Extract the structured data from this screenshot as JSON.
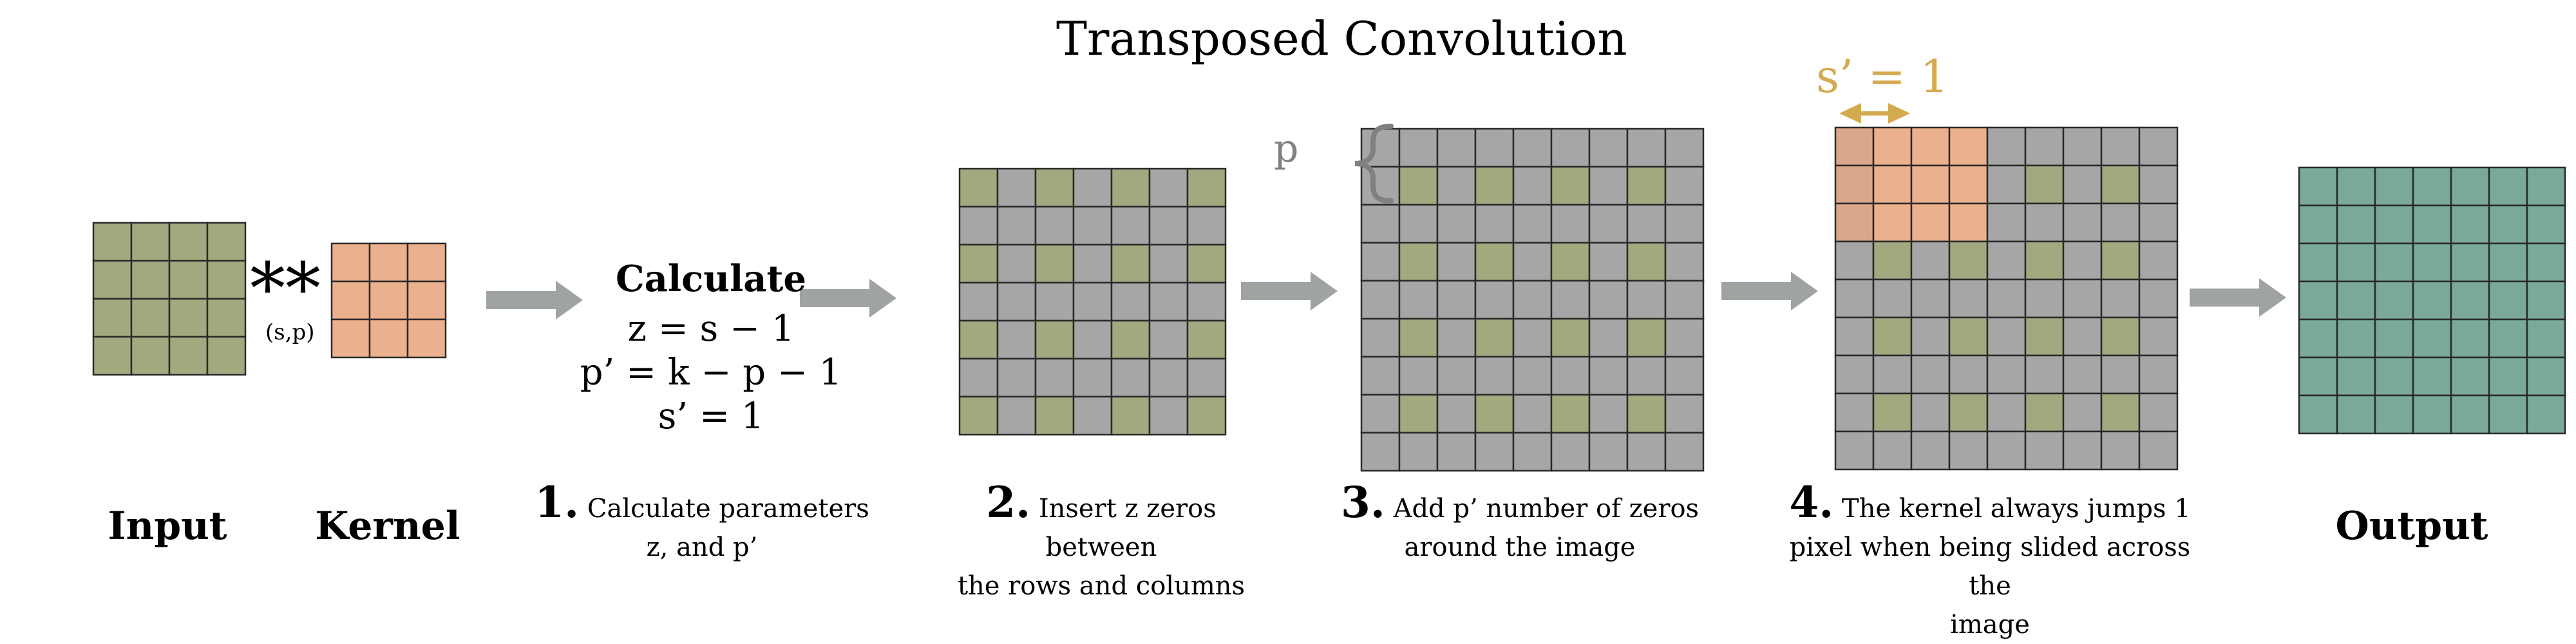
{
  "title": "Transposed Convolution",
  "operator": "**",
  "operator_sub": "(s,p)",
  "labels": {
    "input": "Input",
    "kernel": "Kernel",
    "output": "Output"
  },
  "calculate": {
    "heading": "Calculate",
    "line1": "z  = s − 1",
    "line2": "p’ = k − p − 1",
    "line3": "s’ = 1"
  },
  "steps": [
    {
      "num": "1.",
      "text1": "Calculate parameters",
      "text2": "z, and p’"
    },
    {
      "num": "2.",
      "text1": "Insert z zeros between",
      "text2": "the rows and columns"
    },
    {
      "num": "3.",
      "text1": "Add p’ number of zeros",
      "text2": "around the image"
    },
    {
      "num": "4.",
      "text1": "The kernel always jumps 1",
      "text2": "pixel when being slided across the",
      "text3": "image"
    }
  ],
  "p_label": "p",
  "stride_label": "s’ = 1",
  "colors": {
    "input": "#a3a97f",
    "kernel": "#ebb08d",
    "zero": "#a6a6a6",
    "output": "#7aa89b",
    "arrow": "#9fa3a3",
    "accent": "#d4aa50",
    "overlay": "#d9a88c"
  }
}
